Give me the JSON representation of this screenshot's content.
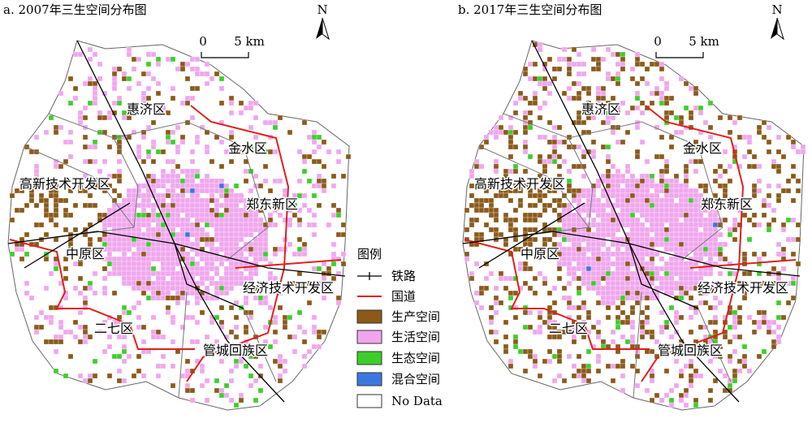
{
  "panels": [
    {
      "title": "a. 2007年三生空间分布图",
      "north": "N",
      "scale": [
        "0",
        "5 km"
      ],
      "districts": [
        "惠济区",
        "金水区",
        "高新技术开发区",
        "郑东新区",
        "中原区",
        "经济技术开发区",
        "二七区",
        "管城回族区"
      ]
    },
    {
      "title": "b. 2017年三生空间分布图",
      "north": "N",
      "scale": [
        "0",
        "5 km"
      ],
      "districts": [
        "惠济区",
        "金水区",
        "高新技术开发区",
        "郑东新区",
        "中原区",
        "经济技术开发区",
        "二七区",
        "管城回族区"
      ]
    }
  ],
  "legend": {
    "title": "图例",
    "items": [
      {
        "label": "铁路",
        "color": "#000000"
      },
      {
        "label": "国道",
        "color": "#e0201b"
      },
      {
        "label": "生产空间",
        "color": "#8b5a1a"
      },
      {
        "label": "生活空间",
        "color": "#f0a6ee"
      },
      {
        "label": "生态空间",
        "color": "#3ccf2a"
      },
      {
        "label": "混合空间",
        "color": "#3a78e0"
      },
      {
        "label": "No Data",
        "color": "#ffffff"
      }
    ]
  }
}
